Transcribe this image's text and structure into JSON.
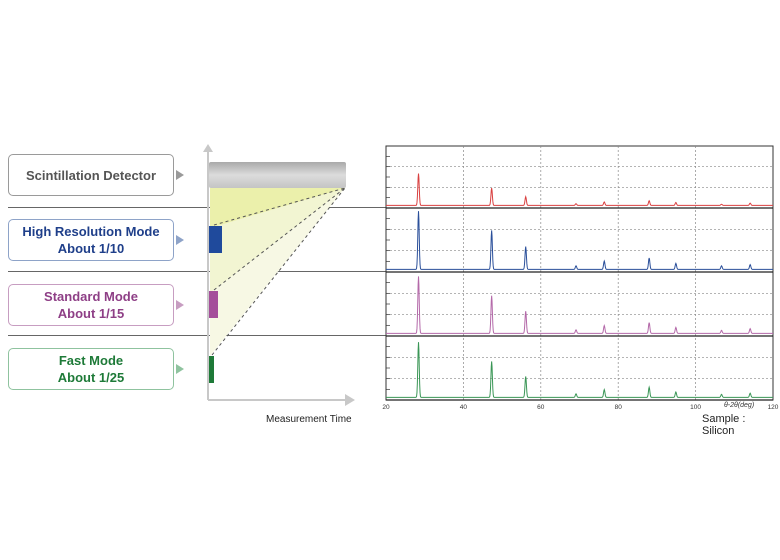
{
  "modes": [
    {
      "line1": "Scintillation Detector",
      "line2": "",
      "color": "#555555"
    },
    {
      "line1": "High Resolution Mode",
      "line2": "About 1/10",
      "color": "#1f3f8a"
    },
    {
      "line1": "Standard Mode",
      "line2": "About 1/15",
      "color": "#8e3f86"
    },
    {
      "line1": "Fast Mode",
      "line2": "About 1/25",
      "color": "#1e7a38"
    }
  ],
  "time_axis_label": "Measurement Time",
  "sample_label": "Sample : Silicon",
  "x_axis_label": "θ-2θ(deg)",
  "chart_data": {
    "type": "line",
    "x_ticks": [
      20,
      40,
      60,
      80,
      100,
      120
    ],
    "xlim": [
      20,
      120
    ],
    "xlabel": "θ-2θ(deg)",
    "peaks_x": [
      28.4,
      47.3,
      56.1,
      69.1,
      76.4,
      88.0,
      94.9,
      106.7,
      114.1
    ],
    "series": [
      {
        "color": "#d94141",
        "peak_heights": [
          0.55,
          0.3,
          0.15,
          0.03,
          0.06,
          0.08,
          0.05,
          0.02,
          0.04
        ]
      },
      {
        "color": "#2a4f9a",
        "peak_heights": [
          0.97,
          0.65,
          0.38,
          0.06,
          0.14,
          0.19,
          0.1,
          0.06,
          0.08
        ]
      },
      {
        "color": "#b469a9",
        "peak_heights": [
          0.95,
          0.63,
          0.37,
          0.06,
          0.13,
          0.18,
          0.1,
          0.05,
          0.08
        ]
      },
      {
        "color": "#3a9656",
        "peak_heights": [
          0.92,
          0.6,
          0.35,
          0.06,
          0.13,
          0.17,
          0.09,
          0.05,
          0.07
        ]
      }
    ]
  }
}
